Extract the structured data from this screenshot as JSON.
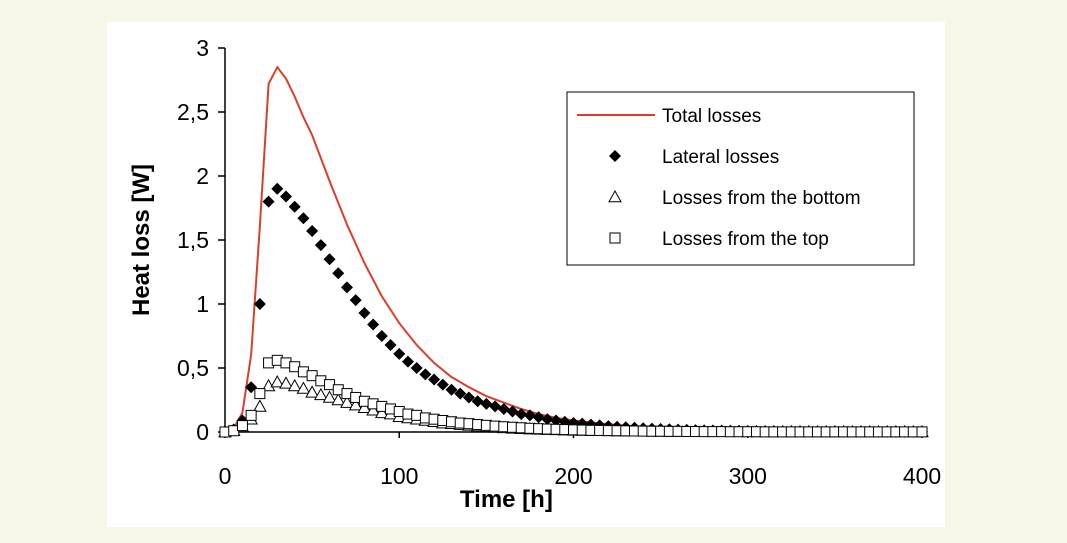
{
  "colors": {
    "page_background": "#f7f7e9",
    "panel_background": "#ffffff",
    "total_line": "#d9402b",
    "markers": "#000000"
  },
  "chart_data": {
    "type": "scatter",
    "xlabel": "Time [h]",
    "ylabel": "Heat loss [W]",
    "xlim": [
      0,
      400
    ],
    "ylim": [
      0,
      3
    ],
    "x_ticks": [
      0,
      100,
      200,
      300,
      400
    ],
    "x_tick_labels": [
      "0",
      "100",
      "200",
      "300",
      "400"
    ],
    "y_ticks": [
      0,
      0.5,
      1,
      1.5,
      2,
      2.5,
      3
    ],
    "y_tick_labels": [
      "0",
      "0,5",
      "1",
      "1,5",
      "2",
      "2,5",
      "3"
    ],
    "grid": false,
    "legend_position": "top-right",
    "series": [
      {
        "name": "Total losses",
        "style": "line",
        "color": "#d9402b",
        "x": [
          0,
          5,
          10,
          15,
          20,
          25,
          30,
          35,
          40,
          45,
          50,
          60,
          70,
          80,
          90,
          100,
          110,
          120,
          130,
          140,
          150,
          160,
          170,
          180,
          190,
          200,
          220,
          240,
          260,
          280,
          300,
          320,
          340,
          360,
          380,
          400
        ],
        "y": [
          0,
          0.03,
          0.15,
          0.6,
          1.6,
          2.72,
          2.85,
          2.76,
          2.62,
          2.46,
          2.32,
          1.96,
          1.62,
          1.32,
          1.06,
          0.85,
          0.68,
          0.54,
          0.43,
          0.35,
          0.28,
          0.23,
          0.18,
          0.14,
          0.11,
          0.09,
          0.06,
          0.04,
          0.03,
          0.02,
          0.01,
          0.01,
          0.005,
          0.004,
          0.003,
          0.002
        ]
      },
      {
        "name": "Lateral losses",
        "style": "diamond",
        "x": [
          0,
          5,
          10,
          15,
          20,
          25,
          30,
          35,
          40,
          45,
          50,
          55,
          60,
          65,
          70,
          75,
          80,
          85,
          90,
          95,
          100,
          105,
          110,
          115,
          120,
          125,
          130,
          135,
          140,
          145,
          150,
          155,
          160,
          165,
          170,
          175,
          180,
          185,
          190,
          195,
          200,
          205,
          210,
          215,
          220,
          225,
          230,
          235,
          240,
          245,
          250,
          255,
          260,
          265,
          270,
          275,
          280,
          285,
          290,
          295,
          300,
          305,
          310,
          315,
          320,
          325,
          330,
          335,
          340,
          345,
          350,
          355,
          360,
          365,
          370,
          375,
          380,
          385,
          390,
          395,
          400
        ],
        "y": [
          0,
          0.02,
          0.09,
          0.35,
          1.0,
          1.8,
          1.9,
          1.84,
          1.76,
          1.67,
          1.57,
          1.46,
          1.35,
          1.24,
          1.13,
          1.03,
          0.93,
          0.84,
          0.75,
          0.68,
          0.61,
          0.55,
          0.5,
          0.45,
          0.41,
          0.37,
          0.33,
          0.3,
          0.27,
          0.24,
          0.22,
          0.2,
          0.18,
          0.16,
          0.14,
          0.13,
          0.115,
          0.1,
          0.09,
          0.08,
          0.07,
          0.065,
          0.058,
          0.052,
          0.046,
          0.041,
          0.037,
          0.033,
          0.029,
          0.026,
          0.023,
          0.021,
          0.019,
          0.017,
          0.015,
          0.013,
          0.012,
          0.011,
          0.01,
          0.009,
          0.008,
          0.007,
          0.006,
          0.006,
          0.005,
          0.005,
          0.004,
          0.004,
          0.003,
          0.003,
          0.003,
          0.002,
          0.002,
          0.002,
          0.002,
          0.001,
          0.001,
          0.001,
          0.001,
          0.001,
          0.001
        ]
      },
      {
        "name": "Losses from the bottom",
        "style": "triangle",
        "x": [
          0,
          5,
          10,
          15,
          20,
          25,
          30,
          35,
          40,
          45,
          50,
          55,
          60,
          65,
          70,
          75,
          80,
          85,
          90,
          95,
          100,
          105,
          110,
          115,
          120,
          125,
          130,
          135,
          140,
          145,
          150,
          155,
          160,
          165,
          170,
          175,
          180,
          185,
          190,
          195,
          200,
          205,
          210,
          215,
          220,
          225,
          230,
          235,
          240,
          245,
          250,
          255,
          260,
          265,
          270,
          275,
          280,
          285,
          290,
          295,
          300,
          305,
          310,
          315,
          320,
          325,
          330,
          335,
          340,
          345,
          350,
          355,
          360,
          365,
          370,
          375,
          380,
          385,
          390,
          395,
          400
        ],
        "y": [
          0,
          0.01,
          0.04,
          0.1,
          0.2,
          0.36,
          0.39,
          0.38,
          0.36,
          0.34,
          0.31,
          0.29,
          0.27,
          0.25,
          0.23,
          0.21,
          0.19,
          0.17,
          0.15,
          0.14,
          0.12,
          0.11,
          0.1,
          0.09,
          0.08,
          0.07,
          0.065,
          0.058,
          0.052,
          0.046,
          0.041,
          0.037,
          0.033,
          0.029,
          0.026,
          0.023,
          0.021,
          0.019,
          0.017,
          0.015,
          0.013,
          0.012,
          0.011,
          0.01,
          0.009,
          0.008,
          0.007,
          0.006,
          0.006,
          0.005,
          0.005,
          0.004,
          0.004,
          0.003,
          0.003,
          0.003,
          0.002,
          0.002,
          0.002,
          0.002,
          0.001,
          0.001,
          0.001,
          0.001,
          0.001,
          0.001,
          0.001,
          0.001,
          0.001,
          0.001,
          0.001,
          0.001,
          0.001,
          0.001,
          0.001,
          0.001,
          0.001,
          0.001,
          0.001,
          0.001,
          0.001
        ]
      },
      {
        "name": "Losses from the top",
        "style": "square",
        "x": [
          0,
          5,
          10,
          15,
          20,
          25,
          30,
          35,
          40,
          45,
          50,
          55,
          60,
          65,
          70,
          75,
          80,
          85,
          90,
          95,
          100,
          105,
          110,
          115,
          120,
          125,
          130,
          135,
          140,
          145,
          150,
          155,
          160,
          165,
          170,
          175,
          180,
          185,
          190,
          195,
          200,
          205,
          210,
          215,
          220,
          225,
          230,
          235,
          240,
          245,
          250,
          255,
          260,
          265,
          270,
          275,
          280,
          285,
          290,
          295,
          300,
          305,
          310,
          315,
          320,
          325,
          330,
          335,
          340,
          345,
          350,
          355,
          360,
          365,
          370,
          375,
          380,
          385,
          390,
          395,
          400
        ],
        "y": [
          0,
          0.01,
          0.05,
          0.13,
          0.3,
          0.54,
          0.56,
          0.54,
          0.51,
          0.47,
          0.44,
          0.4,
          0.37,
          0.33,
          0.3,
          0.27,
          0.24,
          0.22,
          0.2,
          0.18,
          0.16,
          0.14,
          0.13,
          0.11,
          0.1,
          0.09,
          0.08,
          0.07,
          0.065,
          0.058,
          0.052,
          0.046,
          0.041,
          0.037,
          0.033,
          0.029,
          0.026,
          0.023,
          0.021,
          0.019,
          0.017,
          0.015,
          0.013,
          0.012,
          0.011,
          0.01,
          0.009,
          0.008,
          0.007,
          0.006,
          0.006,
          0.005,
          0.005,
          0.004,
          0.004,
          0.003,
          0.003,
          0.003,
          0.002,
          0.002,
          0.002,
          0.002,
          0.001,
          0.001,
          0.001,
          0.001,
          0.001,
          0.001,
          0.001,
          0.001,
          0.001,
          0.001,
          0.001,
          0.001,
          0.001,
          0.001,
          0.001,
          0.001,
          0.001,
          0.001,
          0.001
        ]
      }
    ]
  }
}
